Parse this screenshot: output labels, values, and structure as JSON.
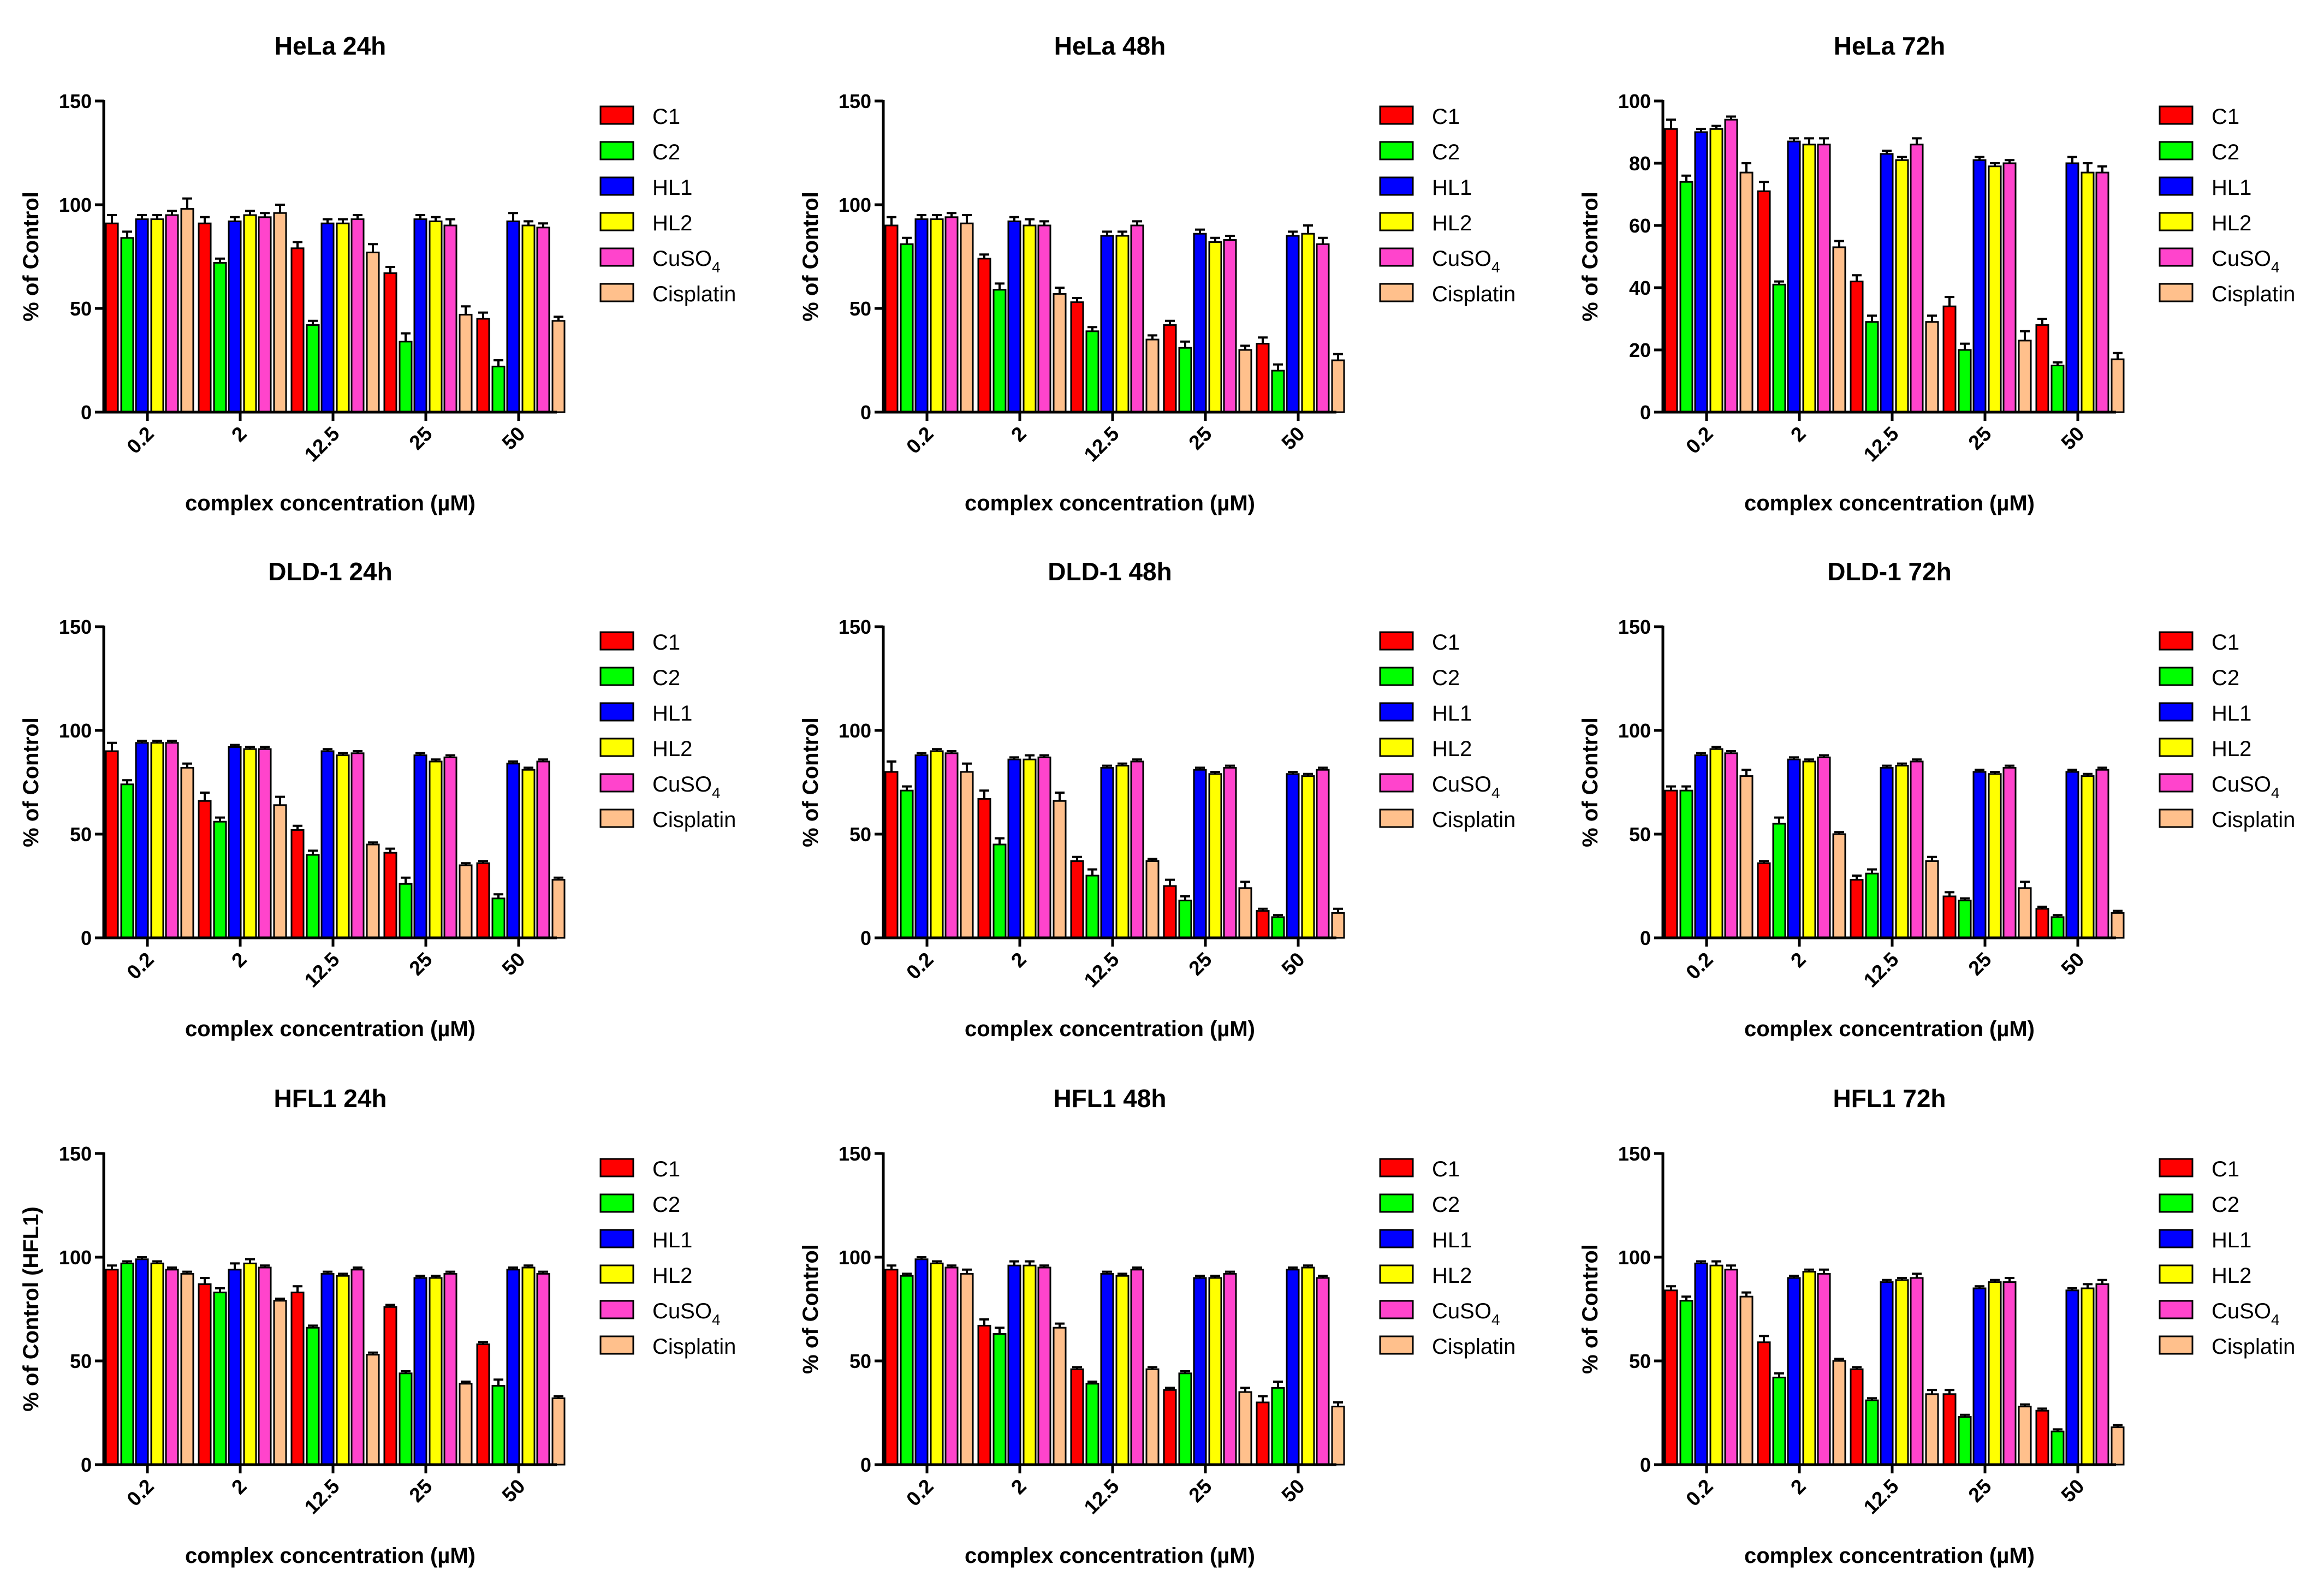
{
  "figure": {
    "xlabel": "complex concentration (µM)",
    "legend": {
      "entries": [
        {
          "name": "C1",
          "sub": "",
          "color": "#ff0000"
        },
        {
          "name": "C2",
          "sub": "",
          "color": "#00ff00"
        },
        {
          "name": "HL1",
          "sub": "",
          "color": "#0000ff"
        },
        {
          "name": "HL2",
          "sub": "",
          "color": "#ffff00"
        },
        {
          "name": "CuSO",
          "sub": "4",
          "color": "#ff44cc"
        },
        {
          "name": "Cisplatin",
          "sub": "",
          "color": "#ffc08c"
        }
      ]
    }
  },
  "chart_data": [
    {
      "type": "bar",
      "title": "HeLa 24h",
      "ylabel": "% of Control",
      "ylim": [
        0,
        150
      ],
      "yticks": [
        0,
        50,
        100,
        150
      ],
      "categories": [
        "0.2",
        "2",
        "12.5",
        "25",
        "50"
      ],
      "series": [
        {
          "name": "C1",
          "values": [
            91,
            91,
            79,
            67,
            45
          ],
          "errors": [
            4,
            3,
            3,
            3,
            3
          ]
        },
        {
          "name": "C2",
          "values": [
            84,
            72,
            42,
            34,
            22
          ],
          "errors": [
            3,
            2,
            2,
            4,
            3
          ]
        },
        {
          "name": "HL1",
          "values": [
            93,
            92,
            91,
            93,
            92
          ],
          "errors": [
            2,
            2,
            2,
            2,
            4
          ]
        },
        {
          "name": "HL2",
          "values": [
            93,
            95,
            91,
            92,
            90
          ],
          "errors": [
            2,
            2,
            2,
            2,
            2
          ]
        },
        {
          "name": "CuSO4",
          "values": [
            95,
            94,
            93,
            90,
            89
          ],
          "errors": [
            2,
            2,
            2,
            3,
            2
          ]
        },
        {
          "name": "Cisplatin",
          "values": [
            98,
            96,
            77,
            47,
            44
          ],
          "errors": [
            5,
            4,
            4,
            4,
            2
          ]
        }
      ]
    },
    {
      "type": "bar",
      "title": "HeLa 48h",
      "ylabel": "% of Control",
      "ylim": [
        0,
        150
      ],
      "yticks": [
        0,
        50,
        100,
        150
      ],
      "categories": [
        "0.2",
        "2",
        "12.5",
        "25",
        "50"
      ],
      "series": [
        {
          "name": "C1",
          "values": [
            90,
            74,
            53,
            42,
            33
          ],
          "errors": [
            4,
            2,
            2,
            2,
            3
          ]
        },
        {
          "name": "C2",
          "values": [
            81,
            59,
            39,
            31,
            20
          ],
          "errors": [
            3,
            3,
            2,
            3,
            3
          ]
        },
        {
          "name": "HL1",
          "values": [
            93,
            92,
            85,
            86,
            85
          ],
          "errors": [
            2,
            2,
            2,
            2,
            2
          ]
        },
        {
          "name": "HL2",
          "values": [
            93,
            90,
            85,
            82,
            86
          ],
          "errors": [
            2,
            3,
            2,
            2,
            4
          ]
        },
        {
          "name": "CuSO4",
          "values": [
            94,
            90,
            90,
            83,
            81
          ],
          "errors": [
            2,
            2,
            2,
            2,
            3
          ]
        },
        {
          "name": "Cisplatin",
          "values": [
            91,
            57,
            35,
            30,
            25
          ],
          "errors": [
            4,
            3,
            2,
            2,
            3
          ]
        }
      ]
    },
    {
      "type": "bar",
      "title": "HeLa 72h",
      "ylabel": "% of Control",
      "ylim": [
        0,
        100
      ],
      "yticks": [
        0,
        20,
        40,
        60,
        80,
        100
      ],
      "categories": [
        "0.2",
        "2",
        "12.5",
        "25",
        "50"
      ],
      "series": [
        {
          "name": "C1",
          "values": [
            91,
            71,
            42,
            34,
            28
          ],
          "errors": [
            3,
            3,
            2,
            3,
            2
          ]
        },
        {
          "name": "C2",
          "values": [
            74,
            41,
            29,
            20,
            15
          ],
          "errors": [
            2,
            1,
            2,
            2,
            1
          ]
        },
        {
          "name": "HL1",
          "values": [
            90,
            87,
            83,
            81,
            80
          ],
          "errors": [
            1,
            1,
            1,
            1,
            2
          ]
        },
        {
          "name": "HL2",
          "values": [
            91,
            86,
            81,
            79,
            77
          ],
          "errors": [
            1,
            2,
            1,
            1,
            3
          ]
        },
        {
          "name": "CuSO4",
          "values": [
            94,
            86,
            86,
            80,
            77
          ],
          "errors": [
            1,
            2,
            2,
            1,
            2
          ]
        },
        {
          "name": "Cisplatin",
          "values": [
            77,
            53,
            29,
            23,
            17
          ],
          "errors": [
            3,
            2,
            2,
            3,
            2
          ]
        }
      ]
    },
    {
      "type": "bar",
      "title": "DLD-1 24h",
      "ylabel": "% of Control",
      "ylim": [
        0,
        150
      ],
      "yticks": [
        0,
        50,
        100,
        150
      ],
      "categories": [
        "0.2",
        "2",
        "12.5",
        "25",
        "50"
      ],
      "series": [
        {
          "name": "C1",
          "values": [
            90,
            66,
            52,
            41,
            36
          ],
          "errors": [
            4,
            4,
            2,
            2,
            1
          ]
        },
        {
          "name": "C2",
          "values": [
            74,
            56,
            40,
            26,
            19
          ],
          "errors": [
            2,
            2,
            2,
            3,
            2
          ]
        },
        {
          "name": "HL1",
          "values": [
            94,
            92,
            90,
            88,
            84
          ],
          "errors": [
            1,
            1,
            1,
            1,
            1
          ]
        },
        {
          "name": "HL2",
          "values": [
            94,
            91,
            88,
            85,
            81
          ],
          "errors": [
            1,
            1,
            1,
            1,
            1
          ]
        },
        {
          "name": "CuSO4",
          "values": [
            94,
            91,
            89,
            87,
            85
          ],
          "errors": [
            1,
            1,
            1,
            1,
            1
          ]
        },
        {
          "name": "Cisplatin",
          "values": [
            82,
            64,
            45,
            35,
            28
          ],
          "errors": [
            2,
            4,
            1,
            1,
            1
          ]
        }
      ]
    },
    {
      "type": "bar",
      "title": "DLD-1 48h",
      "ylabel": "% of Control",
      "ylim": [
        0,
        150
      ],
      "yticks": [
        0,
        50,
        100,
        150
      ],
      "categories": [
        "0.2",
        "2",
        "12.5",
        "25",
        "50"
      ],
      "series": [
        {
          "name": "C1",
          "values": [
            80,
            67,
            37,
            25,
            13
          ],
          "errors": [
            5,
            4,
            2,
            3,
            1
          ]
        },
        {
          "name": "C2",
          "values": [
            71,
            45,
            30,
            18,
            10
          ],
          "errors": [
            2,
            3,
            3,
            2,
            1
          ]
        },
        {
          "name": "HL1",
          "values": [
            88,
            86,
            82,
            81,
            79
          ],
          "errors": [
            1,
            1,
            1,
            1,
            1
          ]
        },
        {
          "name": "HL2",
          "values": [
            90,
            86,
            83,
            79,
            78
          ],
          "errors": [
            1,
            2,
            1,
            1,
            1
          ]
        },
        {
          "name": "CuSO4",
          "values": [
            89,
            87,
            85,
            82,
            81
          ],
          "errors": [
            1,
            1,
            1,
            1,
            1
          ]
        },
        {
          "name": "Cisplatin",
          "values": [
            80,
            66,
            37,
            24,
            12
          ],
          "errors": [
            4,
            4,
            1,
            3,
            2
          ]
        }
      ]
    },
    {
      "type": "bar",
      "title": "DLD-1 72h",
      "ylabel": "% of Control",
      "ylim": [
        0,
        150
      ],
      "yticks": [
        0,
        50,
        100,
        150
      ],
      "categories": [
        "0.2",
        "2",
        "12.5",
        "25",
        "50"
      ],
      "series": [
        {
          "name": "C1",
          "values": [
            71,
            36,
            28,
            20,
            14
          ],
          "errors": [
            2,
            1,
            2,
            2,
            1
          ]
        },
        {
          "name": "C2",
          "values": [
            71,
            55,
            31,
            18,
            10
          ],
          "errors": [
            2,
            3,
            2,
            1,
            1
          ]
        },
        {
          "name": "HL1",
          "values": [
            88,
            86,
            82,
            80,
            80
          ],
          "errors": [
            1,
            1,
            1,
            1,
            1
          ]
        },
        {
          "name": "HL2",
          "values": [
            91,
            85,
            83,
            79,
            78
          ],
          "errors": [
            1,
            1,
            1,
            1,
            1
          ]
        },
        {
          "name": "CuSO4",
          "values": [
            89,
            87,
            85,
            82,
            81
          ],
          "errors": [
            1,
            1,
            1,
            1,
            1
          ]
        },
        {
          "name": "Cisplatin",
          "values": [
            78,
            50,
            37,
            24,
            12
          ],
          "errors": [
            3,
            1,
            2,
            3,
            1
          ]
        }
      ]
    },
    {
      "type": "bar",
      "title": "HFL1 24h",
      "ylabel": "% of Control (HFL1)",
      "ylim": [
        0,
        150
      ],
      "yticks": [
        0,
        50,
        100,
        150
      ],
      "categories": [
        "0.2",
        "2",
        "12.5",
        "25",
        "50"
      ],
      "series": [
        {
          "name": "C1",
          "values": [
            94,
            87,
            83,
            76,
            58
          ],
          "errors": [
            2,
            3,
            3,
            1,
            1
          ]
        },
        {
          "name": "C2",
          "values": [
            97,
            83,
            66,
            44,
            38
          ],
          "errors": [
            1,
            2,
            1,
            1,
            3
          ]
        },
        {
          "name": "HL1",
          "values": [
            99,
            94,
            92,
            90,
            94
          ],
          "errors": [
            1,
            3,
            1,
            1,
            1
          ]
        },
        {
          "name": "HL2",
          "values": [
            97,
            97,
            91,
            90,
            95
          ],
          "errors": [
            1,
            2,
            1,
            1,
            1
          ]
        },
        {
          "name": "CuSO4",
          "values": [
            94,
            95,
            94,
            92,
            92
          ],
          "errors": [
            1,
            1,
            1,
            1,
            1
          ]
        },
        {
          "name": "Cisplatin",
          "values": [
            92,
            79,
            53,
            39,
            32
          ],
          "errors": [
            1,
            1,
            1,
            1,
            1
          ]
        }
      ]
    },
    {
      "type": "bar",
      "title": "HFL1 48h",
      "ylabel": "% of Control",
      "ylim": [
        0,
        150
      ],
      "yticks": [
        0,
        50,
        100,
        150
      ],
      "categories": [
        "0.2",
        "2",
        "12.5",
        "25",
        "50"
      ],
      "series": [
        {
          "name": "C1",
          "values": [
            94,
            67,
            46,
            36,
            30
          ],
          "errors": [
            2,
            3,
            1,
            1,
            3
          ]
        },
        {
          "name": "C2",
          "values": [
            91,
            63,
            39,
            44,
            37
          ],
          "errors": [
            1,
            3,
            1,
            1,
            3
          ]
        },
        {
          "name": "HL1",
          "values": [
            99,
            96,
            92,
            90,
            94
          ],
          "errors": [
            1,
            2,
            1,
            1,
            1
          ]
        },
        {
          "name": "HL2",
          "values": [
            97,
            96,
            91,
            90,
            95
          ],
          "errors": [
            1,
            2,
            1,
            1,
            1
          ]
        },
        {
          "name": "CuSO4",
          "values": [
            95,
            95,
            94,
            92,
            90
          ],
          "errors": [
            1,
            1,
            1,
            1,
            1
          ]
        },
        {
          "name": "Cisplatin",
          "values": [
            92,
            66,
            46,
            35,
            28
          ],
          "errors": [
            2,
            2,
            1,
            2,
            2
          ]
        }
      ]
    },
    {
      "type": "bar",
      "title": "HFL1 72h",
      "ylabel": "% of Control",
      "ylim": [
        0,
        150
      ],
      "yticks": [
        0,
        50,
        100,
        150
      ],
      "categories": [
        "0.2",
        "2",
        "12.5",
        "25",
        "50"
      ],
      "series": [
        {
          "name": "C1",
          "values": [
            84,
            59,
            46,
            34,
            26
          ],
          "errors": [
            2,
            3,
            1,
            2,
            1
          ]
        },
        {
          "name": "C2",
          "values": [
            79,
            42,
            31,
            23,
            16
          ],
          "errors": [
            2,
            2,
            1,
            1,
            1
          ]
        },
        {
          "name": "HL1",
          "values": [
            97,
            90,
            88,
            85,
            84
          ],
          "errors": [
            1,
            1,
            1,
            1,
            1
          ]
        },
        {
          "name": "HL2",
          "values": [
            96,
            93,
            89,
            88,
            85
          ],
          "errors": [
            2,
            1,
            1,
            1,
            2
          ]
        },
        {
          "name": "CuSO4",
          "values": [
            94,
            92,
            90,
            88,
            87
          ],
          "errors": [
            2,
            2,
            2,
            2,
            2
          ]
        },
        {
          "name": "Cisplatin",
          "values": [
            81,
            50,
            34,
            28,
            18
          ],
          "errors": [
            2,
            1,
            2,
            1,
            1
          ]
        }
      ]
    }
  ]
}
